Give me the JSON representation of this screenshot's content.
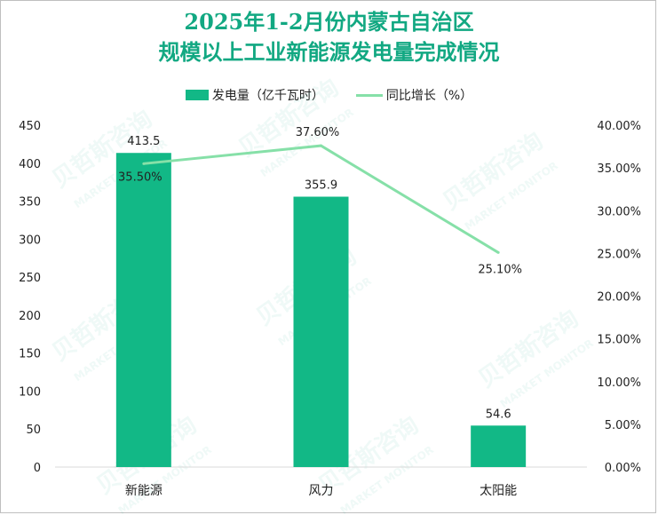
{
  "title_line1": "2025年1-2月份内蒙古自治区",
  "title_line2": "规模以上工业新能源发电量完成情况",
  "colors": {
    "bar": "#12b886",
    "line": "#86e0a8",
    "title": "#12a882"
  },
  "watermark": {
    "cn": "贝哲斯咨询",
    "en": "MARKET MONITOR"
  },
  "chart_data": {
    "type": "bar+line",
    "categories": [
      "新能源",
      "风力",
      "太阳能"
    ],
    "series": [
      {
        "name": "发电量（亿千瓦时）",
        "type": "bar",
        "axis": "left",
        "values": [
          413.5,
          355.9,
          54.6
        ],
        "labels": [
          "413.5",
          "355.9",
          "54.6"
        ]
      },
      {
        "name": "同比增长（%）",
        "type": "line",
        "axis": "right",
        "values": [
          35.5,
          37.6,
          25.1
        ],
        "labels": [
          "35.50%",
          "37.60%",
          "25.10%"
        ]
      }
    ],
    "y_left": {
      "min": 0,
      "max": 450,
      "ticks": [
        "0",
        "50",
        "100",
        "150",
        "200",
        "250",
        "300",
        "350",
        "400",
        "450"
      ]
    },
    "y_right": {
      "min": 0,
      "max": 40,
      "ticks": [
        "0.00%",
        "5.00%",
        "10.00%",
        "15.00%",
        "20.00%",
        "25.00%",
        "30.00%",
        "35.00%",
        "40.00%"
      ]
    },
    "legend_position": "top"
  }
}
